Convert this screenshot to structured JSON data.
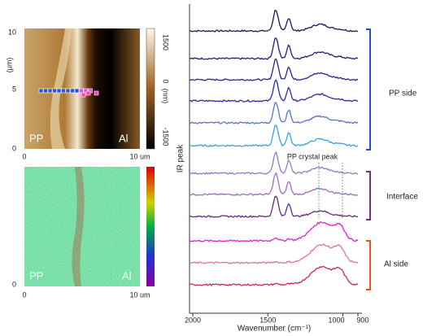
{
  "afm_map": {
    "y_label": "(μm)",
    "y_ticks": [
      "0",
      "5",
      "10"
    ],
    "x_ticks": [
      "0",
      "10 um"
    ],
    "colorbar_ticks": [
      "1500",
      "0",
      "-1500"
    ],
    "colorbar_unit": "(nm)",
    "left_label": "PP",
    "right_label": "Al"
  },
  "ir_map": {
    "y_ticks": [
      "0"
    ],
    "x_ticks": [
      "0",
      "10 um"
    ],
    "left_label": "PP",
    "right_label": "Al"
  },
  "spectra": {
    "y_label": "IR peak",
    "x_label": "Wavenumber (cm⁻¹)",
    "xlim": [
      2000,
      900
    ],
    "x_ticks": [
      2000,
      1500,
      1000,
      900
    ],
    "annotation": "PP crystal peak",
    "groups": [
      {
        "label": "PP side"
      },
      {
        "label": "Interface"
      },
      {
        "label": "Al side"
      }
    ]
  }
}
